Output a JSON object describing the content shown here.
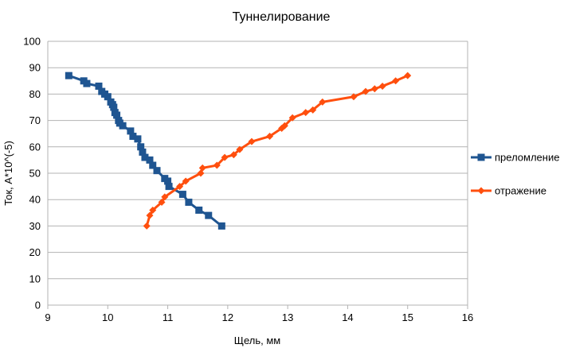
{
  "chart_data": {
    "type": "scatter",
    "title": "Туннелирование",
    "xlabel": "Щель, мм",
    "ylabel": "Ток, A*10^(-5)",
    "xlim": [
      9,
      16
    ],
    "ylim": [
      0,
      100
    ],
    "xticks": [
      "9",
      "10",
      "11",
      "12",
      "13",
      "14",
      "15",
      "16"
    ],
    "yticks": [
      "0",
      "10",
      "20",
      "30",
      "40",
      "50",
      "60",
      "70",
      "80",
      "90",
      "100"
    ],
    "grid": "horizontal",
    "legend_position": "right",
    "series": [
      {
        "name": "преломление",
        "color": "#1f5591",
        "marker": "square",
        "x": [
          9.35,
          9.6,
          9.65,
          9.85,
          9.9,
          9.95,
          10.0,
          10.05,
          10.08,
          10.1,
          10.12,
          10.15,
          10.18,
          10.2,
          10.25,
          10.38,
          10.42,
          10.5,
          10.55,
          10.58,
          10.62,
          10.7,
          10.75,
          10.82,
          10.95,
          11.0,
          11.02,
          11.25,
          11.35,
          11.52,
          11.68,
          11.9
        ],
        "y": [
          87,
          85,
          84,
          83,
          81,
          80,
          79,
          77,
          76,
          75,
          73,
          72,
          70,
          69,
          68,
          66,
          64,
          63,
          60,
          58,
          56,
          55,
          53,
          51,
          48,
          47,
          45,
          42,
          39,
          36,
          34,
          30
        ]
      },
      {
        "name": "отражение",
        "color": "#ff4f0e",
        "marker": "diamond",
        "x": [
          10.65,
          10.7,
          10.75,
          10.9,
          10.95,
          11.2,
          11.3,
          11.55,
          11.58,
          11.82,
          11.95,
          12.1,
          12.2,
          12.4,
          12.7,
          12.9,
          12.95,
          13.08,
          13.3,
          13.42,
          13.58,
          14.1,
          14.3,
          14.45,
          14.58,
          14.8,
          15.0
        ],
        "y": [
          30,
          34,
          36,
          39,
          41,
          45,
          47,
          50,
          52,
          53,
          56,
          57,
          59,
          62,
          64,
          67,
          68,
          71,
          73,
          74,
          77,
          79,
          81,
          82,
          83,
          85,
          87
        ]
      }
    ]
  }
}
